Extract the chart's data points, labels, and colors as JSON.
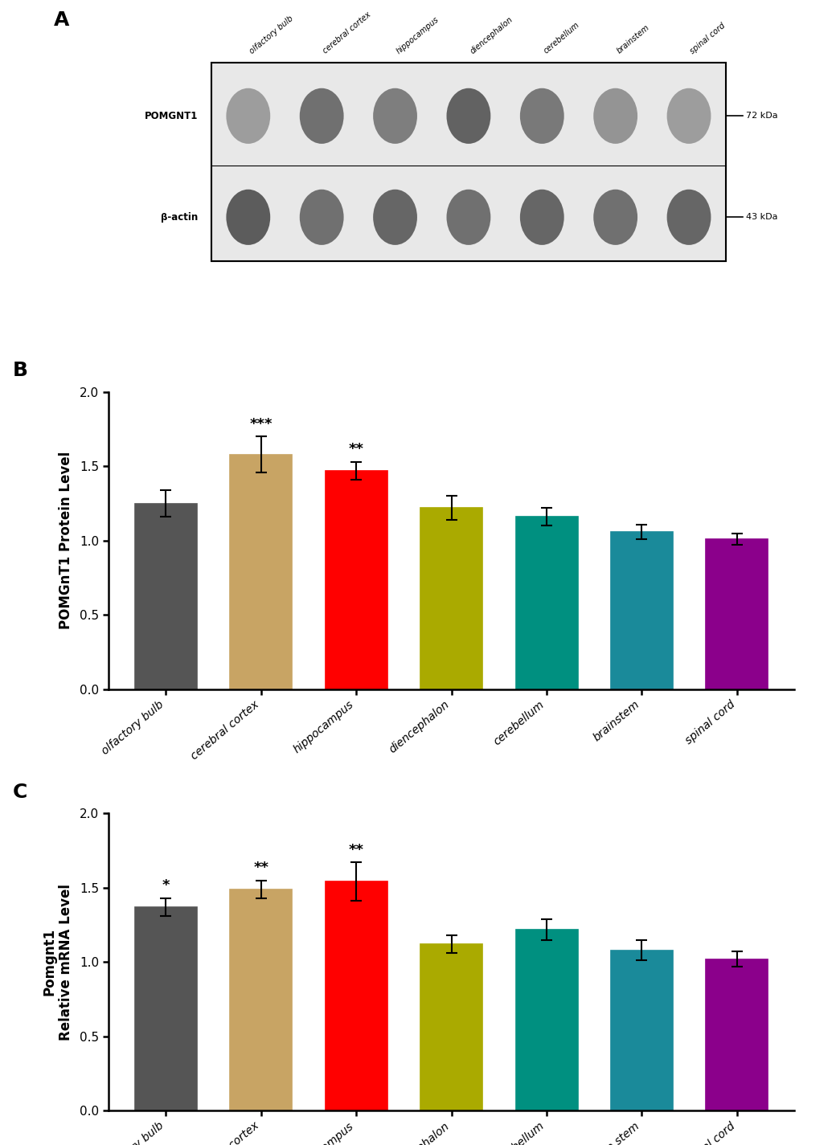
{
  "panel_B": {
    "categories": [
      "olfactory bulb",
      "cerebral cortex",
      "hippocampus",
      "diencephalon",
      "cerebellum",
      "brainstem",
      "spinal cord"
    ],
    "values": [
      1.25,
      1.58,
      1.47,
      1.22,
      1.16,
      1.06,
      1.01
    ],
    "errors": [
      0.09,
      0.12,
      0.06,
      0.08,
      0.06,
      0.05,
      0.04
    ],
    "colors": [
      "#555555",
      "#C8A464",
      "#FF0000",
      "#AAAA00",
      "#009080",
      "#1A8A9A",
      "#8B008B"
    ],
    "significance": [
      "",
      "***",
      "**",
      "",
      "",
      "",
      ""
    ],
    "ylabel": "POMGnT1 Protein Level",
    "ylim": [
      0,
      2.0
    ],
    "yticks": [
      0.0,
      0.5,
      1.0,
      1.5,
      2.0
    ]
  },
  "panel_C": {
    "categories": [
      "olfactory bulb",
      "cerebral cortex",
      "hippocampus",
      "diencephalon",
      "cerebellum",
      "brain stem",
      "spinal cord"
    ],
    "values": [
      1.37,
      1.49,
      1.54,
      1.12,
      1.22,
      1.08,
      1.02
    ],
    "errors": [
      0.06,
      0.06,
      0.13,
      0.06,
      0.07,
      0.07,
      0.05
    ],
    "colors": [
      "#555555",
      "#C8A464",
      "#FF0000",
      "#AAAA00",
      "#009080",
      "#1A8A9A",
      "#8B008B"
    ],
    "significance": [
      "*",
      "**",
      "**",
      "",
      "",
      "",
      ""
    ],
    "ylabel": "Pomgnt1\nRelative mRNA Level",
    "ylim": [
      0,
      2.0
    ],
    "yticks": [
      0.0,
      0.5,
      1.0,
      1.5,
      2.0
    ]
  },
  "western_blot": {
    "labels_top": [
      "olfactory bulb",
      "cerebral cortex",
      "hippocampus",
      "diencephalon",
      "cerebellum",
      "brainstem",
      "spinal cord"
    ],
    "row_labels": [
      "POMGNT1",
      "β-actin"
    ],
    "kda_labels": [
      "72 kDa",
      "43 kDa"
    ],
    "band_intensities_row1": [
      0.55,
      0.8,
      0.72,
      0.88,
      0.75,
      0.6,
      0.55
    ],
    "band_intensities_row2": [
      0.85,
      0.75,
      0.8,
      0.75,
      0.8,
      0.75,
      0.8
    ]
  },
  "figsize": [
    10.4,
    14.25
  ],
  "dpi": 100
}
